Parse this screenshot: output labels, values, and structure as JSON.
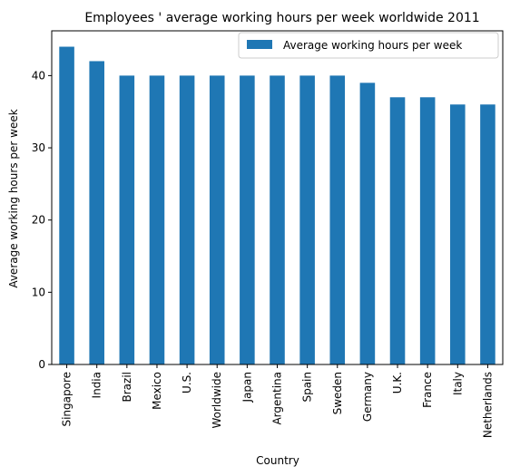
{
  "chart_data": {
    "type": "bar",
    "title": "Employees ' average working hours per week worldwide 2011",
    "xlabel": "Country",
    "ylabel": "Average working hours per week",
    "categories": [
      "Singapore",
      "India",
      "Brazil",
      "Mexico",
      "U.S.",
      "Worldwide",
      "Japan",
      "Argentina",
      "Spain",
      "Sweden",
      "Germany",
      "U.K.",
      "France",
      "Italy",
      "Netherlands"
    ],
    "series": [
      {
        "name": "Average working hours per week",
        "values": [
          44,
          42,
          40,
          40,
          40,
          40,
          40,
          40,
          40,
          40,
          39,
          37,
          37,
          36,
          36
        ],
        "color": "#1f77b4"
      }
    ],
    "ylim": [
      0,
      46.2
    ],
    "yticks": [
      0,
      10,
      20,
      30,
      40
    ],
    "grid": false,
    "legend_position": "top-right"
  }
}
